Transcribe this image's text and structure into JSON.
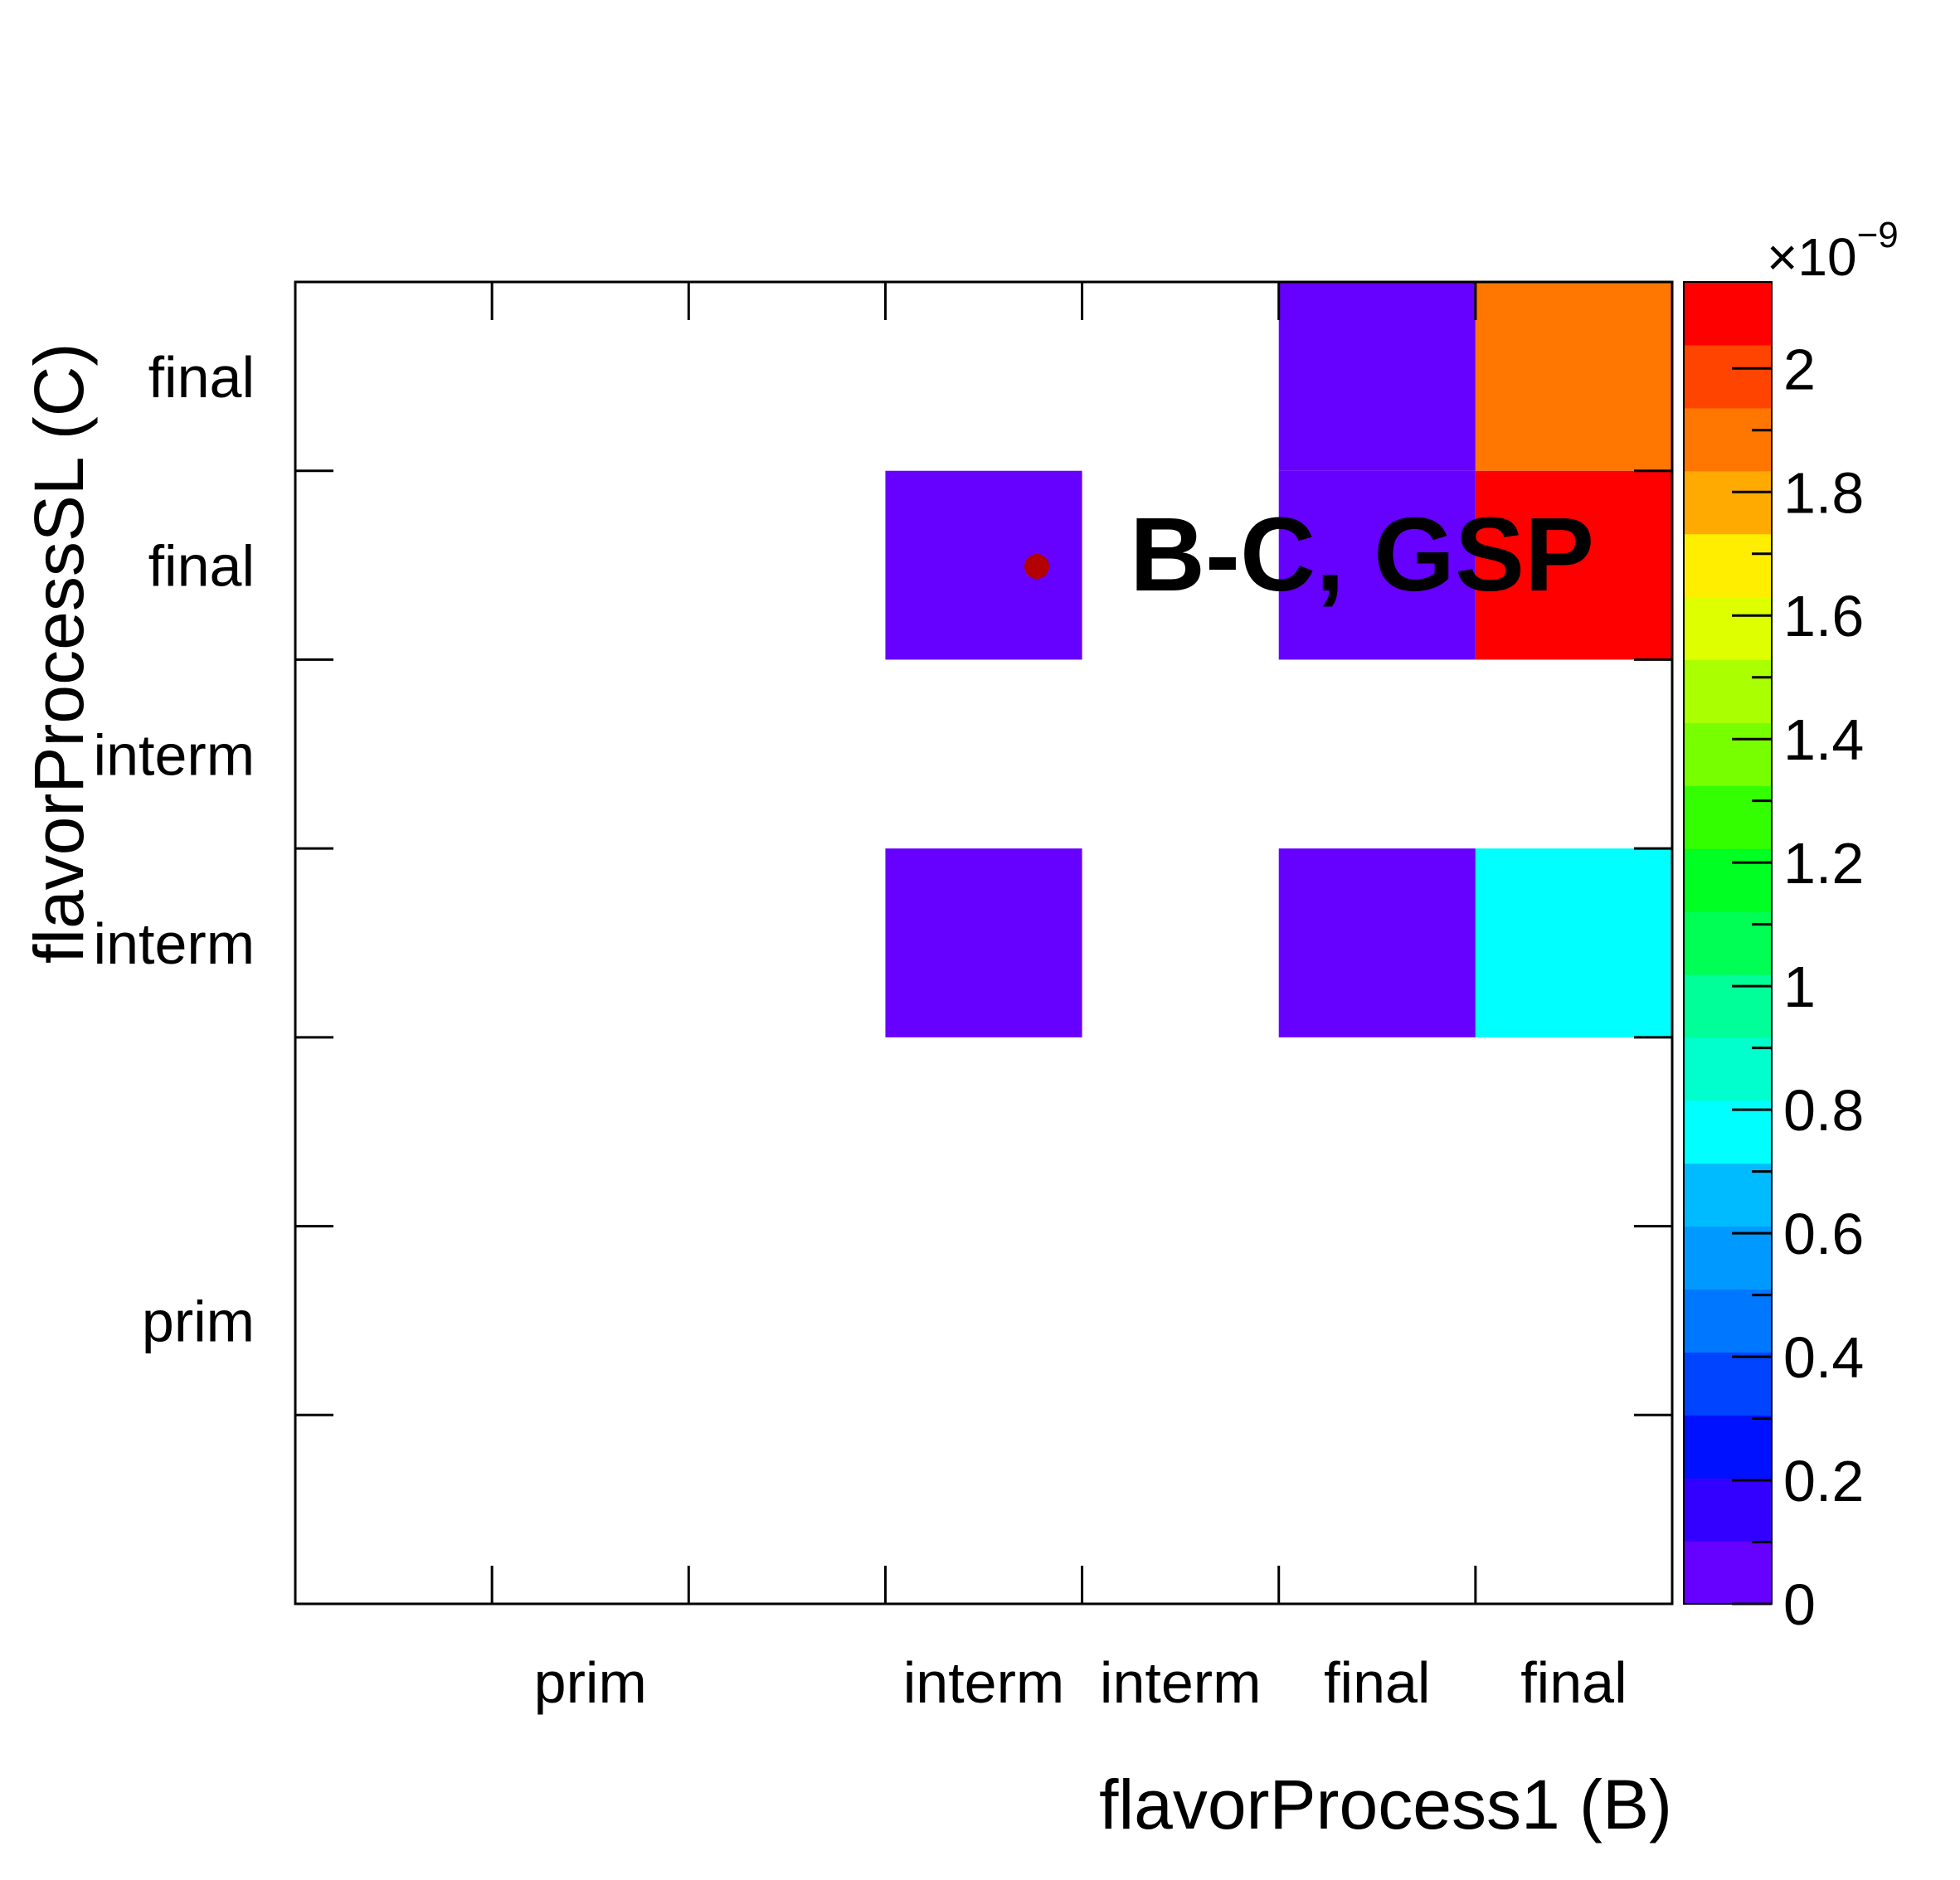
{
  "chart_data": {
    "type": "heatmap",
    "title": "",
    "xlabel": "flavorProcess1 (B)",
    "ylabel": "flavorProcessSL (C)",
    "x_categories": [
      "",
      "prim",
      "",
      "interm",
      "interm",
      "final",
      "final"
    ],
    "x_tick_labels": [
      {
        "label": "prim",
        "x": 1.5
      },
      {
        "label": "interm",
        "x": 3.5
      },
      {
        "label": "interm",
        "x": 4.5
      },
      {
        "label": "final",
        "x": 5.5
      },
      {
        "label": "final",
        "x": 6.5
      }
    ],
    "y_tick_labels": [
      {
        "label": "prim",
        "y": 1.5
      },
      {
        "label": "interm",
        "y": 3.5
      },
      {
        "label": "interm",
        "y": 4.5
      },
      {
        "label": "final",
        "y": 5.5
      },
      {
        "label": "final",
        "y": 6.5
      }
    ],
    "xlim": [
      0,
      7
    ],
    "ylim": [
      0,
      7
    ],
    "cells": [
      {
        "x": 3,
        "y": 3,
        "value": 0.02
      },
      {
        "x": 5,
        "y": 3,
        "value": 0.02
      },
      {
        "x": 6,
        "y": 3,
        "value": 0.72
      },
      {
        "x": 3,
        "y": 5,
        "value": 0.02
      },
      {
        "x": 5,
        "y": 5,
        "value": 0.02
      },
      {
        "x": 6,
        "y": 5,
        "value": 2.12
      },
      {
        "x": 5,
        "y": 6,
        "value": 0.02
      },
      {
        "x": 6,
        "y": 6,
        "value": 1.88
      }
    ],
    "zlim": [
      0,
      2.14
    ],
    "z_exponent_label": "×10",
    "z_exponent": "−9",
    "z_ticks": [
      "0",
      "0.2",
      "0.4",
      "0.6",
      "0.8",
      "1",
      "1.2",
      "1.4",
      "1.6",
      "1.8",
      "2"
    ],
    "z_tick_values": [
      0,
      0.2,
      0.4,
      0.6,
      0.8,
      1.0,
      1.2,
      1.4,
      1.6,
      1.8,
      2.0
    ],
    "palette": [
      "#6600ff",
      "#3300ff",
      "#0011ff",
      "#0044ff",
      "#0077ff",
      "#0099ff",
      "#00bbff",
      "#00ffff",
      "#00ffcc",
      "#00ff99",
      "#00ff55",
      "#00ff22",
      "#33ff00",
      "#77ff00",
      "#aaff00",
      "#ddff00",
      "#ffee00",
      "#ffaa00",
      "#ff7700",
      "#ff4400",
      "#ff0000"
    ],
    "legend": {
      "label": "B-C, GSP",
      "marker_color": "#b30000",
      "position": "top-right"
    },
    "grid": false
  }
}
